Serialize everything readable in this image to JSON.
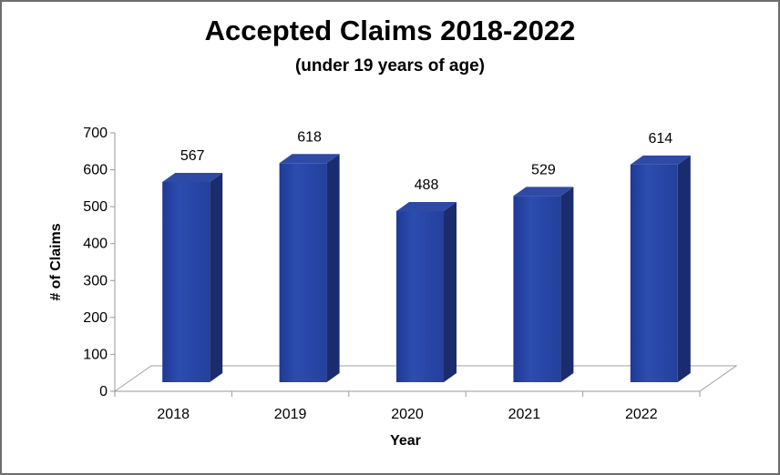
{
  "chart_data": {
    "type": "bar",
    "title": "Accepted Claims 2018-2022",
    "subtitle": "(under 19 years of age)",
    "xlabel": "Year",
    "ylabel": "# of Claims",
    "categories": [
      "2018",
      "2019",
      "2020",
      "2021",
      "2022"
    ],
    "values": [
      567,
      618,
      488,
      529,
      614
    ],
    "data_labels": [
      "567",
      "618",
      "488",
      "529",
      "614"
    ],
    "ylim": [
      0,
      700
    ],
    "yticks": [
      "0",
      "100",
      "200",
      "300",
      "400",
      "500",
      "600",
      "700"
    ],
    "grid": false,
    "legend": "none",
    "style": "3d-column",
    "colors": {
      "bar_front": "#2a48a6",
      "bar_side": "#1a2c6e",
      "bar_top": "#2e4aa5"
    }
  }
}
